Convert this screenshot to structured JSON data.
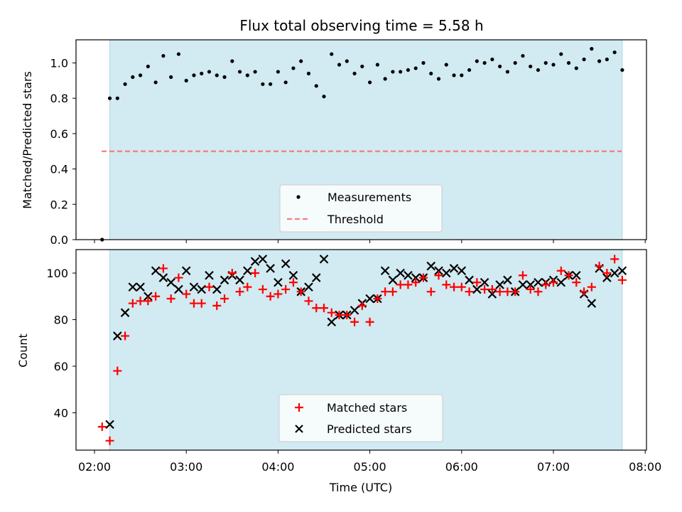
{
  "chart_data": [
    {
      "type": "scatter",
      "title": "Flux total observing time = 5.58 h",
      "ylabel": "Matched/Predicted stars",
      "xlabel": "",
      "xlim": [
        "02:00",
        "08:00"
      ],
      "xlim_minutes_note": "",
      "ylim": [
        0,
        1.13
      ],
      "yticks": [
        0.0,
        0.2,
        0.4,
        0.6,
        0.8,
        1.0
      ],
      "ytick_labels": [
        "0.0",
        "0.2",
        "0.4",
        "0.6",
        "0.8",
        "1.0"
      ],
      "shaded_span": [
        "02:10",
        "07:45"
      ],
      "shade_color": "#add8e6",
      "series": [
        {
          "name": "Measurements",
          "marker": "dot",
          "color": "#000000",
          "x": [
            "02:05",
            "02:10",
            "02:15",
            "02:20",
            "02:25",
            "02:30",
            "02:35",
            "02:40",
            "02:45",
            "02:50",
            "02:55",
            "03:00",
            "03:05",
            "03:10",
            "03:15",
            "03:20",
            "03:25",
            "03:30",
            "03:35",
            "03:40",
            "03:45",
            "03:50",
            "03:55",
            "04:00",
            "04:05",
            "04:10",
            "04:15",
            "04:20",
            "04:25",
            "04:30",
            "04:35",
            "04:40",
            "04:45",
            "04:50",
            "04:55",
            "05:00",
            "05:05",
            "05:10",
            "05:15",
            "05:20",
            "05:25",
            "05:30",
            "05:35",
            "05:40",
            "05:45",
            "05:50",
            "05:55",
            "06:00",
            "06:05",
            "06:10",
            "06:15",
            "06:20",
            "06:25",
            "06:30",
            "06:35",
            "06:40",
            "06:45",
            "06:50",
            "06:55",
            "07:00",
            "07:05",
            "07:10",
            "07:15",
            "07:20",
            "07:25",
            "07:30",
            "07:35",
            "07:40",
            "07:45"
          ],
          "values": [
            0.0,
            0.8,
            0.8,
            0.88,
            0.92,
            0.93,
            0.98,
            0.89,
            1.04,
            0.92,
            1.05,
            0.9,
            0.93,
            0.94,
            0.95,
            0.93,
            0.92,
            1.01,
            0.95,
            0.93,
            0.95,
            0.88,
            0.88,
            0.95,
            0.89,
            0.97,
            1.01,
            0.94,
            0.87,
            0.81,
            1.05,
            0.99,
            1.01,
            0.94,
            0.98,
            0.89,
            0.99,
            0.91,
            0.95,
            0.95,
            0.96,
            0.97,
            1.0,
            0.94,
            0.91,
            0.99,
            0.93,
            0.93,
            0.96,
            1.01,
            1.0,
            1.02,
            0.98,
            0.95,
            1.0,
            1.04,
            0.98,
            0.96,
            1.0,
            0.99,
            1.05,
            1.0,
            0.97,
            1.02,
            1.08,
            1.01,
            1.02,
            1.06,
            0.96
          ]
        },
        {
          "name": "Threshold",
          "marker": "dashed-line",
          "color": "#f08080",
          "x": [
            "02:10",
            "07:45"
          ],
          "values": [
            0.5,
            0.5
          ]
        }
      ],
      "legend": {
        "placement": "lower-center",
        "entries": [
          "Measurements",
          "Threshold"
        ]
      }
    },
    {
      "type": "scatter",
      "title": "",
      "ylabel": "Count",
      "xlabel": "Time (UTC)",
      "xlim": [
        "02:00",
        "08:00"
      ],
      "xticks": [
        "02:00",
        "03:00",
        "04:00",
        "05:00",
        "06:00",
        "07:00",
        "08:00"
      ],
      "ylim": [
        23,
        111
      ],
      "yticks": [
        40,
        60,
        80,
        100
      ],
      "shaded_span": [
        "02:10",
        "07:45"
      ],
      "shade_color": "#add8e6",
      "series": [
        {
          "name": "Matched stars",
          "marker": "plus",
          "color": "#ff0000",
          "x": [
            "02:05",
            "02:10",
            "02:15",
            "02:20",
            "02:25",
            "02:30",
            "02:35",
            "02:40",
            "02:45",
            "02:50",
            "02:55",
            "03:00",
            "03:05",
            "03:10",
            "03:15",
            "03:20",
            "03:25",
            "03:30",
            "03:35",
            "03:40",
            "03:45",
            "03:50",
            "03:55",
            "04:00",
            "04:05",
            "04:10",
            "04:15",
            "04:20",
            "04:25",
            "04:30",
            "04:35",
            "04:40",
            "04:45",
            "04:50",
            "04:55",
            "05:00",
            "05:05",
            "05:10",
            "05:15",
            "05:20",
            "05:25",
            "05:30",
            "05:35",
            "05:40",
            "05:45",
            "05:50",
            "05:55",
            "06:00",
            "06:05",
            "06:10",
            "06:15",
            "06:20",
            "06:25",
            "06:30",
            "06:35",
            "06:40",
            "06:45",
            "06:50",
            "06:55",
            "07:00",
            "07:05",
            "07:10",
            "07:15",
            "07:20",
            "07:25",
            "07:30",
            "07:35",
            "07:40",
            "07:45"
          ],
          "values": [
            34,
            28,
            58,
            73,
            87,
            88,
            88,
            90,
            102,
            89,
            98,
            91,
            87,
            87,
            94,
            86,
            89,
            100,
            92,
            94,
            100,
            93,
            90,
            91,
            93,
            96,
            92,
            88,
            85,
            85,
            83,
            82,
            82,
            79,
            86,
            79,
            89,
            92,
            92,
            95,
            95,
            96,
            98,
            92,
            99,
            95,
            94,
            94,
            92,
            96,
            93,
            93,
            92,
            92,
            92,
            99,
            93,
            92,
            95,
            96,
            101,
            99,
            96,
            92,
            94,
            103,
            100,
            106,
            97
          ]
        },
        {
          "name": "Predicted stars",
          "marker": "x",
          "color": "#000000",
          "x": [
            "02:10",
            "02:15",
            "02:20",
            "02:25",
            "02:30",
            "02:35",
            "02:40",
            "02:45",
            "02:50",
            "02:55",
            "03:00",
            "03:05",
            "03:10",
            "03:15",
            "03:20",
            "03:25",
            "03:30",
            "03:35",
            "03:40",
            "03:45",
            "03:50",
            "03:55",
            "04:00",
            "04:05",
            "04:10",
            "04:15",
            "04:20",
            "04:25",
            "04:30",
            "04:35",
            "04:40",
            "04:45",
            "04:50",
            "04:55",
            "05:00",
            "05:05",
            "05:10",
            "05:15",
            "05:20",
            "05:25",
            "05:30",
            "05:35",
            "05:40",
            "05:45",
            "05:50",
            "05:55",
            "06:00",
            "06:05",
            "06:10",
            "06:15",
            "06:20",
            "06:25",
            "06:30",
            "06:35",
            "06:40",
            "06:45",
            "06:50",
            "06:55",
            "07:00",
            "07:05",
            "07:10",
            "07:15",
            "07:20",
            "07:25",
            "07:30",
            "07:35",
            "07:40",
            "07:45"
          ],
          "values": [
            35,
            73,
            83,
            94,
            94,
            90,
            101,
            98,
            96,
            93,
            101,
            94,
            93,
            99,
            93,
            97,
            99,
            97,
            101,
            105,
            106,
            102,
            96,
            104,
            99,
            92,
            94,
            98,
            106,
            79,
            82,
            82,
            84,
            87,
            89,
            89,
            101,
            97,
            100,
            99,
            98,
            98,
            103,
            101,
            100,
            102,
            101,
            97,
            93,
            96,
            91,
            95,
            97,
            92,
            95,
            95,
            96,
            96,
            97,
            96,
            99,
            99,
            91,
            87,
            102,
            98,
            100,
            101
          ]
        }
      ],
      "legend": {
        "placement": "lower-center",
        "entries": [
          "Matched stars",
          "Predicted stars"
        ]
      }
    }
  ]
}
